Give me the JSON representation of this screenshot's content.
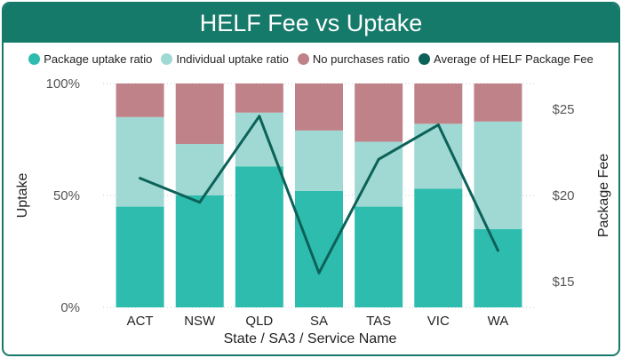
{
  "title": "HELF Fee vs Uptake",
  "legend": [
    {
      "label": "Package uptake ratio",
      "color": "#2dbcad"
    },
    {
      "label": "Individual uptake ratio",
      "color": "#a0d9d3"
    },
    {
      "label": "No purchases ratio",
      "color": "#bf8289"
    },
    {
      "label": "Average of HELF Package Fee",
      "color": "#0c6158"
    }
  ],
  "chart_data": {
    "type": "bar",
    "stacked": true,
    "title": "HELF Fee vs Uptake",
    "xlabel": "State / SA3 / Service Name",
    "ylabel": "Uptake",
    "y2label": "Package Fee",
    "categories": [
      "ACT",
      "NSW",
      "QLD",
      "SA",
      "TAS",
      "VIC",
      "WA"
    ],
    "series": [
      {
        "name": "Package uptake ratio",
        "type": "bar",
        "color": "#2dbcad",
        "values": [
          0.45,
          0.5,
          0.63,
          0.52,
          0.45,
          0.53,
          0.35
        ]
      },
      {
        "name": "Individual uptake ratio",
        "type": "bar",
        "color": "#a0d9d3",
        "values": [
          0.4,
          0.23,
          0.24,
          0.27,
          0.29,
          0.29,
          0.48
        ]
      },
      {
        "name": "No purchases ratio",
        "type": "bar",
        "color": "#bf8289",
        "values": [
          0.15,
          0.27,
          0.13,
          0.21,
          0.26,
          0.18,
          0.17
        ]
      },
      {
        "name": "Average of HELF Package Fee",
        "type": "line",
        "axis": "right",
        "color": "#0c6158",
        "values": [
          21.0,
          19.6,
          24.6,
          15.5,
          22.1,
          24.1,
          16.8
        ]
      }
    ],
    "ylim": [
      0,
      1
    ],
    "y_ticks": [
      "0%",
      "50%",
      "100%"
    ],
    "y_tick_values": [
      0,
      0.5,
      1
    ],
    "y2lim": [
      13.5,
      26.5
    ],
    "y2_ticks": [
      "$15",
      "$20",
      "$25"
    ],
    "y2_tick_values": [
      15,
      20,
      25
    ],
    "legend_position": "top",
    "grid": true
  }
}
